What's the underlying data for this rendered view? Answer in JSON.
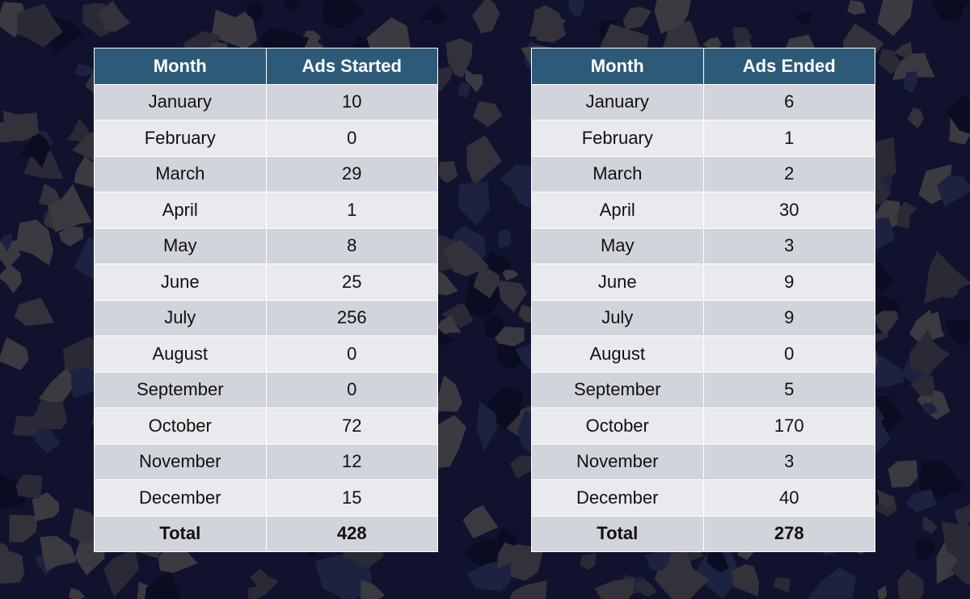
{
  "tables": [
    {
      "headers": [
        "Month",
        "Ads Started"
      ],
      "rows": [
        [
          "January",
          10
        ],
        [
          "February",
          0
        ],
        [
          "March",
          29
        ],
        [
          "April",
          1
        ],
        [
          "May",
          8
        ],
        [
          "June",
          25
        ],
        [
          "July",
          256
        ],
        [
          "August",
          0
        ],
        [
          "September",
          0
        ],
        [
          "October",
          72
        ],
        [
          "November",
          12
        ],
        [
          "December",
          15
        ]
      ],
      "total": [
        "Total",
        428
      ]
    },
    {
      "headers": [
        "Month",
        "Ads Ended"
      ],
      "rows": [
        [
          "January",
          6
        ],
        [
          "February",
          1
        ],
        [
          "March",
          2
        ],
        [
          "April",
          30
        ],
        [
          "May",
          3
        ],
        [
          "June",
          9
        ],
        [
          "July",
          9
        ],
        [
          "August",
          0
        ],
        [
          "September",
          5
        ],
        [
          "October",
          170
        ],
        [
          "November",
          3
        ],
        [
          "December",
          40
        ]
      ],
      "total": [
        "Total",
        278
      ]
    }
  ]
}
